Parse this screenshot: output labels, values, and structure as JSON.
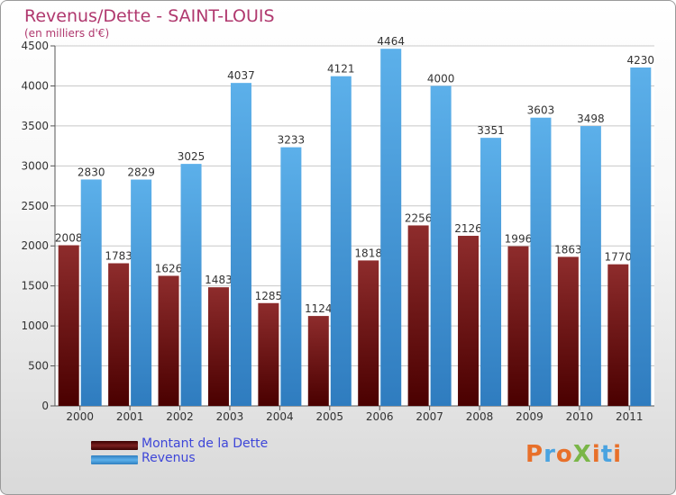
{
  "header": {
    "title": "Revenus/Dette - SAINT-LOUIS",
    "subtitle": "(en milliers d'€)"
  },
  "chart_data": {
    "type": "bar",
    "title": "Revenus/Dette - SAINT-LOUIS",
    "subtitle": "(en milliers d'€)",
    "categories": [
      "2000",
      "2001",
      "2002",
      "2003",
      "2004",
      "2005",
      "2006",
      "2007",
      "2008",
      "2009",
      "2010",
      "2011"
    ],
    "series": [
      {
        "name": "Montant de la Dette",
        "color": "#7a1f1f",
        "values": [
          2008,
          1783,
          1626,
          1483,
          1285,
          1124,
          1818,
          2256,
          2126,
          1996,
          1863,
          1770
        ]
      },
      {
        "name": "Revenus",
        "color": "#4aa3e0",
        "values": [
          2830,
          2829,
          3025,
          4037,
          3233,
          4121,
          4464,
          4000,
          3351,
          3603,
          3498,
          4230
        ]
      }
    ],
    "ylim": [
      0,
      4500
    ],
    "yticks": [
      0,
      500,
      1000,
      1500,
      2000,
      2500,
      3000,
      3500,
      4000,
      4500
    ],
    "grid": true,
    "legend_position": "bottom-left"
  },
  "legend": [
    {
      "label": "Montant de la Dette",
      "color": "#7a1f1f"
    },
    {
      "label": "Revenus",
      "color": "#4aa3e0"
    }
  ],
  "logo": {
    "text": "ProXiti",
    "colors": [
      "#e8702a",
      "#4aa3e0",
      "#e8702a",
      "#7ab648",
      "#e8702a",
      "#4aa3e0",
      "#e8702a"
    ]
  }
}
